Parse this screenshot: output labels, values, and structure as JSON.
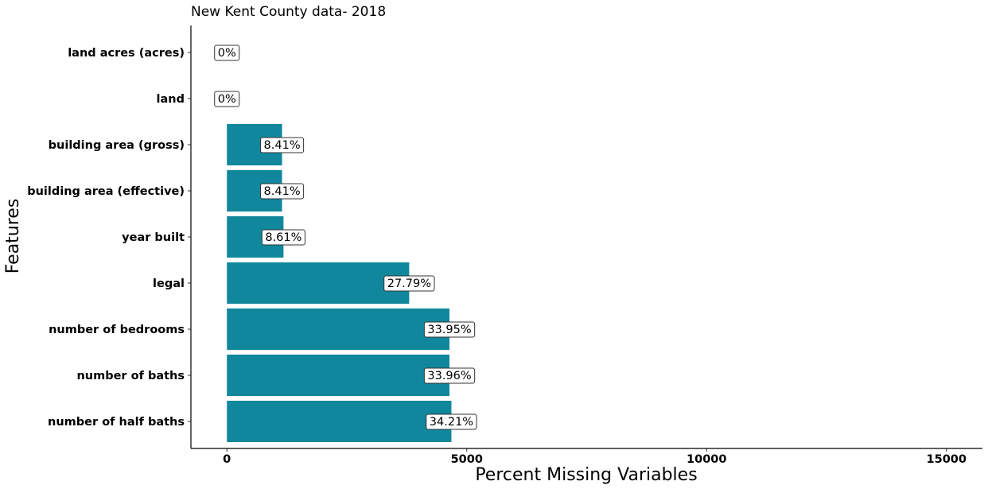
{
  "chart_data": {
    "type": "bar",
    "orientation": "horizontal",
    "title": "New Kent County data- 2018",
    "xlabel": "Percent Missing Variables",
    "ylabel": "Features",
    "xlim": [
      -750,
      15750
    ],
    "xticks": [
      0,
      5000,
      10000,
      15000
    ],
    "grid": false,
    "bar_color": "#10879c",
    "categories": [
      "land acres (acres)",
      "land",
      "building area (gross)",
      "building area (effective)",
      "year built",
      "legal",
      "number of bedrooms",
      "number of baths",
      "number of half baths"
    ],
    "values": [
      0,
      0,
      1150,
      1150,
      1180,
      3800,
      4640,
      4640,
      4680
    ],
    "data_labels": [
      "0%",
      "0%",
      "8.41%",
      "8.41%",
      "8.61%",
      "27.79%",
      "33.95%",
      "33.96%",
      "34.21%"
    ]
  }
}
